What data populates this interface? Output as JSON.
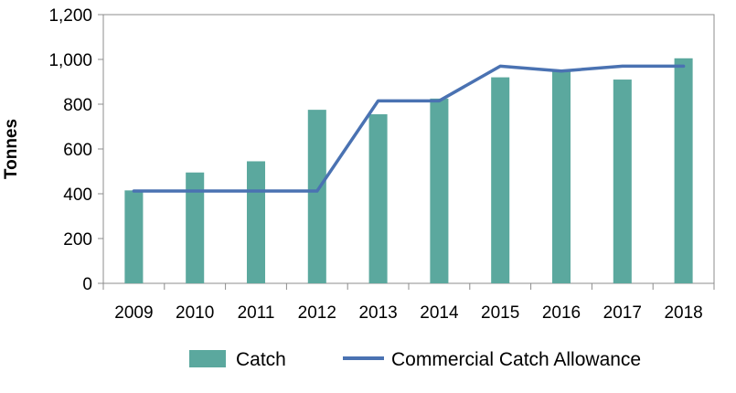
{
  "chart_data": {
    "type": "bar",
    "categories": [
      "2009",
      "2010",
      "2011",
      "2012",
      "2013",
      "2014",
      "2015",
      "2016",
      "2017",
      "2018"
    ],
    "series": [
      {
        "name": "Catch",
        "type": "bar",
        "color": "#5ba89e",
        "values": [
          415,
          495,
          545,
          775,
          755,
          825,
          920,
          945,
          910,
          1005
        ]
      },
      {
        "name": "Commercial Catch Allowance",
        "type": "line",
        "color": "#4a72b2",
        "values": [
          412,
          412,
          412,
          412,
          815,
          815,
          970,
          948,
          970,
          970
        ]
      }
    ],
    "ylabel": "Tonnes",
    "ylim": [
      0,
      1200
    ],
    "yticks": [
      0,
      200,
      400,
      600,
      800,
      1000,
      1200
    ],
    "ytick_labels": [
      "0",
      "200",
      "400",
      "600",
      "800",
      "1,000",
      "1,200"
    ],
    "grid": false,
    "legend": "bottom"
  }
}
